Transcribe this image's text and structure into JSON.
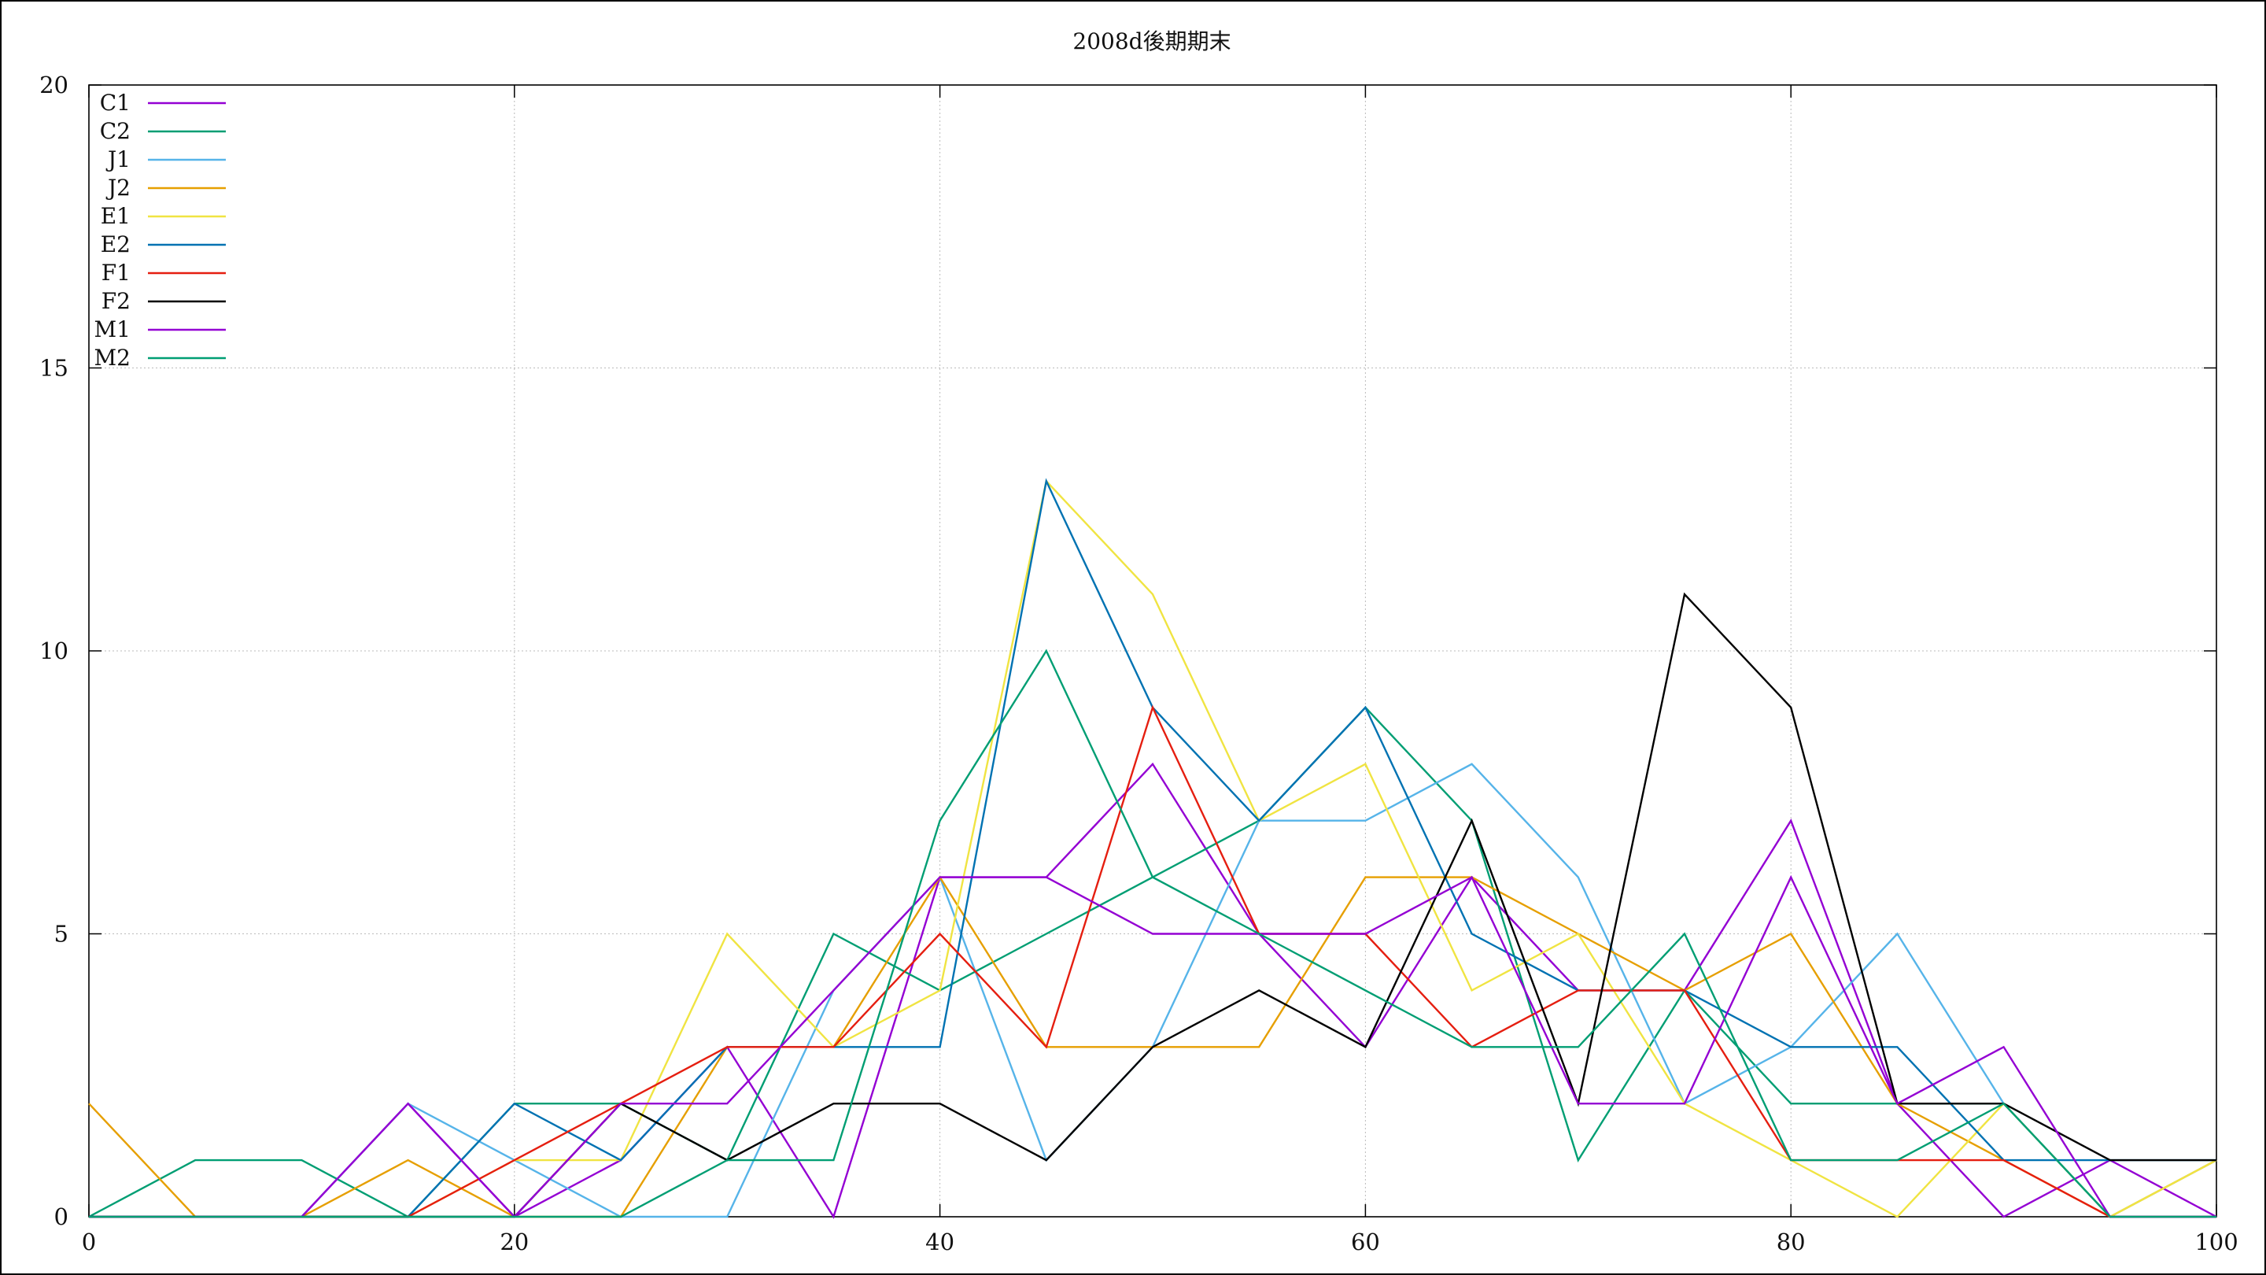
{
  "chart_data": {
    "type": "line",
    "title": "2008d後期期末",
    "xlabel": "",
    "ylabel": "",
    "xlim": [
      0,
      100
    ],
    "ylim": [
      0,
      20
    ],
    "x_ticks": [
      "0",
      "20",
      "40",
      "60",
      "80",
      "100"
    ],
    "y_ticks": [
      "0",
      "5",
      "10",
      "15",
      "20"
    ],
    "grid": true,
    "legend_position": "top-left",
    "x": [
      0,
      5,
      10,
      15,
      20,
      25,
      30,
      35,
      40,
      45,
      50,
      55,
      60,
      65,
      70,
      75,
      80,
      85,
      90,
      95,
      100
    ],
    "series": [
      {
        "name": "C1",
        "color": "#9400d3",
        "values": [
          0,
          0,
          0,
          2,
          0,
          1,
          3,
          0,
          6,
          6,
          8,
          5,
          3,
          6,
          4,
          4,
          7,
          2,
          0,
          1,
          0
        ]
      },
      {
        "name": "C2",
        "color": "#009e73",
        "values": [
          0,
          1,
          1,
          0,
          2,
          2,
          1,
          5,
          4,
          5,
          6,
          7,
          9,
          7,
          1,
          4,
          2,
          2,
          2,
          0,
          0
        ]
      },
      {
        "name": "J1",
        "color": "#56b4e9",
        "values": [
          0,
          0,
          0,
          2,
          1,
          0,
          0,
          4,
          6,
          1,
          3,
          7,
          7,
          8,
          6,
          2,
          3,
          5,
          2,
          0,
          1
        ]
      },
      {
        "name": "J2",
        "color": "#e69f00",
        "values": [
          2,
          0,
          0,
          1,
          0,
          0,
          3,
          3,
          6,
          3,
          3,
          3,
          6,
          6,
          5,
          4,
          5,
          2,
          1,
          0,
          1
        ]
      },
      {
        "name": "E1",
        "color": "#f0e442",
        "values": [
          0,
          0,
          0,
          0,
          1,
          1,
          5,
          3,
          4,
          13,
          11,
          7,
          8,
          4,
          5,
          2,
          1,
          0,
          2,
          0,
          1
        ]
      },
      {
        "name": "E2",
        "color": "#0072b2",
        "values": [
          0,
          0,
          0,
          0,
          2,
          1,
          3,
          3,
          3,
          13,
          9,
          7,
          9,
          5,
          4,
          4,
          3,
          3,
          1,
          1,
          1
        ]
      },
      {
        "name": "F1",
        "color": "#e51e10",
        "values": [
          0,
          0,
          0,
          0,
          1,
          2,
          3,
          3,
          5,
          3,
          9,
          5,
          5,
          3,
          4,
          4,
          1,
          1,
          1,
          0,
          0
        ]
      },
      {
        "name": "F2",
        "color": "#000000",
        "values": [
          0,
          0,
          0,
          0,
          0,
          2,
          1,
          2,
          2,
          1,
          3,
          4,
          3,
          7,
          2,
          11,
          9,
          2,
          2,
          1,
          1
        ]
      },
      {
        "name": "M1",
        "color": "#9400d3",
        "values": [
          0,
          0,
          0,
          2,
          0,
          2,
          2,
          4,
          6,
          6,
          5,
          5,
          5,
          6,
          2,
          2,
          6,
          2,
          3,
          0,
          0
        ]
      },
      {
        "name": "M2",
        "color": "#009e73",
        "values": [
          0,
          0,
          0,
          0,
          0,
          0,
          1,
          1,
          7,
          10,
          6,
          5,
          4,
          3,
          3,
          5,
          1,
          1,
          2,
          0,
          0
        ]
      }
    ]
  }
}
